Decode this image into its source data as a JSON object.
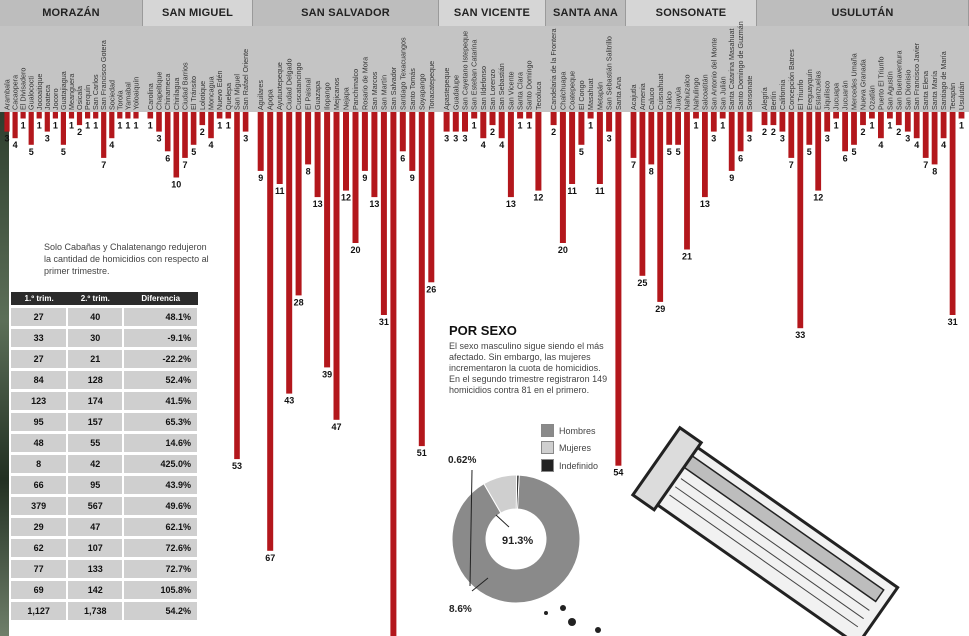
{
  "chart_data": {
    "type": "bar",
    "departments": [
      {
        "name": "MORAZÁN",
        "municipalities": [
          {
            "name": "Arambala",
            "value": 3
          },
          {
            "name": "Cacaopera",
            "value": 4
          },
          {
            "name": "El Divisadero",
            "value": 1
          },
          {
            "name": "Gualococti",
            "value": 5
          },
          {
            "name": "Jocoaitique",
            "value": 1
          },
          {
            "name": "Joateca",
            "value": 3
          },
          {
            "name": "Jocoro",
            "value": 1
          },
          {
            "name": "Guatajiagua",
            "value": 5
          },
          {
            "name": "Meanguera",
            "value": 1
          },
          {
            "name": "Osicala",
            "value": 2
          },
          {
            "name": "Perquín",
            "value": 1
          },
          {
            "name": "San Carlos",
            "value": 1
          },
          {
            "name": "San Francisco Gotera",
            "value": 7
          },
          {
            "name": "Sociedad",
            "value": 4
          },
          {
            "name": "Torola",
            "value": 1
          },
          {
            "name": "Yamabal",
            "value": 1
          },
          {
            "name": "Yoloaiquín",
            "value": 1
          }
        ]
      },
      {
        "name": "SAN MIGUEL",
        "municipalities": [
          {
            "name": "Carolina",
            "value": 1
          },
          {
            "name": "Chapeltique",
            "value": 3
          },
          {
            "name": "Chinameca",
            "value": 6
          },
          {
            "name": "Chirilagua",
            "value": 10
          },
          {
            "name": "Ciudad Barrios",
            "value": 7
          },
          {
            "name": "El Tránsito",
            "value": 5
          },
          {
            "name": "Lolotique",
            "value": 2
          },
          {
            "name": "Moncagua",
            "value": 4
          },
          {
            "name": "Nuevo Edén",
            "value": 1
          },
          {
            "name": "Quelepa",
            "value": 1
          },
          {
            "name": "San Miguel",
            "value": 53
          },
          {
            "name": "San Rafael Oriente",
            "value": 3
          }
        ]
      },
      {
        "name": "SAN SALVADOR",
        "municipalities": [
          {
            "name": "Aguilares",
            "value": 9
          },
          {
            "name": "Apopa",
            "value": 67
          },
          {
            "name": "Ayutuxtepeque",
            "value": 11
          },
          {
            "name": "Ciudad Delgado",
            "value": 43
          },
          {
            "name": "Cuscatancingo",
            "value": 28
          },
          {
            "name": "El Paisnal",
            "value": 8
          },
          {
            "name": "Guazapa",
            "value": 13
          },
          {
            "name": "Ilopango",
            "value": 39
          },
          {
            "name": "Mejicanos",
            "value": 47
          },
          {
            "name": "Nejapa",
            "value": 12
          },
          {
            "name": "Panchimalco",
            "value": 20
          },
          {
            "name": "Rosario de Mora",
            "value": 9
          },
          {
            "name": "San Marcos",
            "value": 13
          },
          {
            "name": "San Martín",
            "value": 31
          },
          {
            "name": "San Salvador",
            "value": 81
          },
          {
            "name": "Santiago Texacuangos",
            "value": 6
          },
          {
            "name": "Santo Tomás",
            "value": 9
          },
          {
            "name": "Soyapango",
            "value": 51
          },
          {
            "name": "Tonacatepeque",
            "value": 26
          }
        ]
      },
      {
        "name": "SAN VICENTE",
        "municipalities": [
          {
            "name": "Apastepeque",
            "value": 3
          },
          {
            "name": "Guadalupe",
            "value": 3
          },
          {
            "name": "San Cayetano Istepeque",
            "value": 3
          },
          {
            "name": "San Esteban Catarina",
            "value": 1
          },
          {
            "name": "San Ildefonso",
            "value": 4
          },
          {
            "name": "San Lorenzo",
            "value": 2
          },
          {
            "name": "San Sebastián",
            "value": 4
          },
          {
            "name": "San Vicente",
            "value": 13
          },
          {
            "name": "Santa Clara",
            "value": 1
          },
          {
            "name": "Santo Domingo",
            "value": 1
          },
          {
            "name": "Tecoluca",
            "value": 12
          }
        ]
      },
      {
        "name": "SANTA ANA",
        "municipalities": [
          {
            "name": "Candelaria de la Frontera",
            "value": 2
          },
          {
            "name": "Chalchuapa",
            "value": 20
          },
          {
            "name": "Coatepeque",
            "value": 11
          },
          {
            "name": "El Congo",
            "value": 5
          },
          {
            "name": "Masahuat",
            "value": 1
          },
          {
            "name": "Metapán",
            "value": 11
          },
          {
            "name": "San Sebastián Salitrillo",
            "value": 3
          },
          {
            "name": "Santa Ana",
            "value": 54
          }
        ]
      },
      {
        "name": "SONSONATE",
        "municipalities": [
          {
            "name": "Acajutla",
            "value": 7
          },
          {
            "name": "Armenia",
            "value": 25
          },
          {
            "name": "Caluco",
            "value": 8
          },
          {
            "name": "Cuisnahuat",
            "value": 29
          },
          {
            "name": "Izalco",
            "value": 5
          },
          {
            "name": "Juayúa",
            "value": 5
          },
          {
            "name": "Nahuizalco",
            "value": 21
          },
          {
            "name": "Nahulingo",
            "value": 1
          },
          {
            "name": "Salcoatitán",
            "value": 13
          },
          {
            "name": "San Antonio del Monte",
            "value": 3
          },
          {
            "name": "San Julián",
            "value": 1
          },
          {
            "name": "Santa Catarina Masahuat",
            "value": 9
          },
          {
            "name": "Santo Domingo de Guzmán",
            "value": 6
          },
          {
            "name": "Sonsonate",
            "value": 3
          }
        ]
      },
      {
        "name": "USULUTÁN",
        "municipalities": [
          {
            "name": "Alegría",
            "value": 2
          },
          {
            "name": "Berlín",
            "value": 2
          },
          {
            "name": "California",
            "value": 3
          },
          {
            "name": "Concepción Batres",
            "value": 7
          },
          {
            "name": "El Triunfo",
            "value": 33
          },
          {
            "name": "Ereguayquín",
            "value": 5
          },
          {
            "name": "Estanzuelas",
            "value": 12
          },
          {
            "name": "Jiquilisco",
            "value": 3
          },
          {
            "name": "Jucuapa",
            "value": 1
          },
          {
            "name": "Jucuarán",
            "value": 6
          },
          {
            "name": "Mercedes Umaña",
            "value": 5
          },
          {
            "name": "Nueva Granada",
            "value": 2
          },
          {
            "name": "Ozatlán",
            "value": 1
          },
          {
            "name": "Puerto El Triunfo",
            "value": 4
          },
          {
            "name": "San Agustín",
            "value": 1
          },
          {
            "name": "San Buenaventura",
            "value": 2
          },
          {
            "name": "San Dionisio",
            "value": 3
          },
          {
            "name": "San Francisco Javier",
            "value": 4
          },
          {
            "name": "Santa Elena",
            "value": 7
          },
          {
            "name": "Santa María",
            "value": 8
          },
          {
            "name": "Santiago de María",
            "value": 4
          },
          {
            "name": "Tecapán",
            "value": 31
          },
          {
            "name": "Usulután",
            "value": 1
          }
        ]
      }
    ],
    "sexo": {
      "title": "POR SEXO",
      "text": "El sexo masculino sigue siendo el más afectado. Sin embargo, las mujeres incrementaron la cuota de homicidios. En el segundo trimestre registraron 149 homicidios contra 81 en el primero.",
      "slices": [
        {
          "label": "Hombres",
          "value": 91.3,
          "value_label": "91.3%",
          "color": "#8a8a8a"
        },
        {
          "label": "Mujeres",
          "value": 8.6,
          "value_label": "8.6%",
          "color": "#cfcfcf"
        },
        {
          "label": "Indefinido",
          "value": 0.62,
          "value_label": "0.62%",
          "color": "#222222"
        }
      ]
    }
  },
  "table": {
    "note": "Solo Cabañas y Chalatenango redujeron la cantidad de homicidios con respecto al primer trimestre.",
    "headers": [
      "1.º trim.",
      "2.º trim.",
      "Diferencia"
    ],
    "rows": [
      [
        "27",
        "40",
        "48.1%"
      ],
      [
        "33",
        "30",
        "-9.1%"
      ],
      [
        "27",
        "21",
        "-22.2%"
      ],
      [
        "84",
        "128",
        "52.4%"
      ],
      [
        "123",
        "174",
        "41.5%"
      ],
      [
        "95",
        "157",
        "65.3%"
      ],
      [
        "48",
        "55",
        "14.6%"
      ],
      [
        "8",
        "42",
        "425.0%"
      ],
      [
        "66",
        "95",
        "43.9%"
      ],
      [
        "379",
        "567",
        "49.6%"
      ],
      [
        "29",
        "47",
        "62.1%"
      ],
      [
        "62",
        "107",
        "72.6%"
      ],
      [
        "77",
        "133",
        "72.7%"
      ],
      [
        "69",
        "142",
        "105.8%"
      ],
      [
        "1,127",
        "1,738",
        "54.2%"
      ]
    ]
  }
}
